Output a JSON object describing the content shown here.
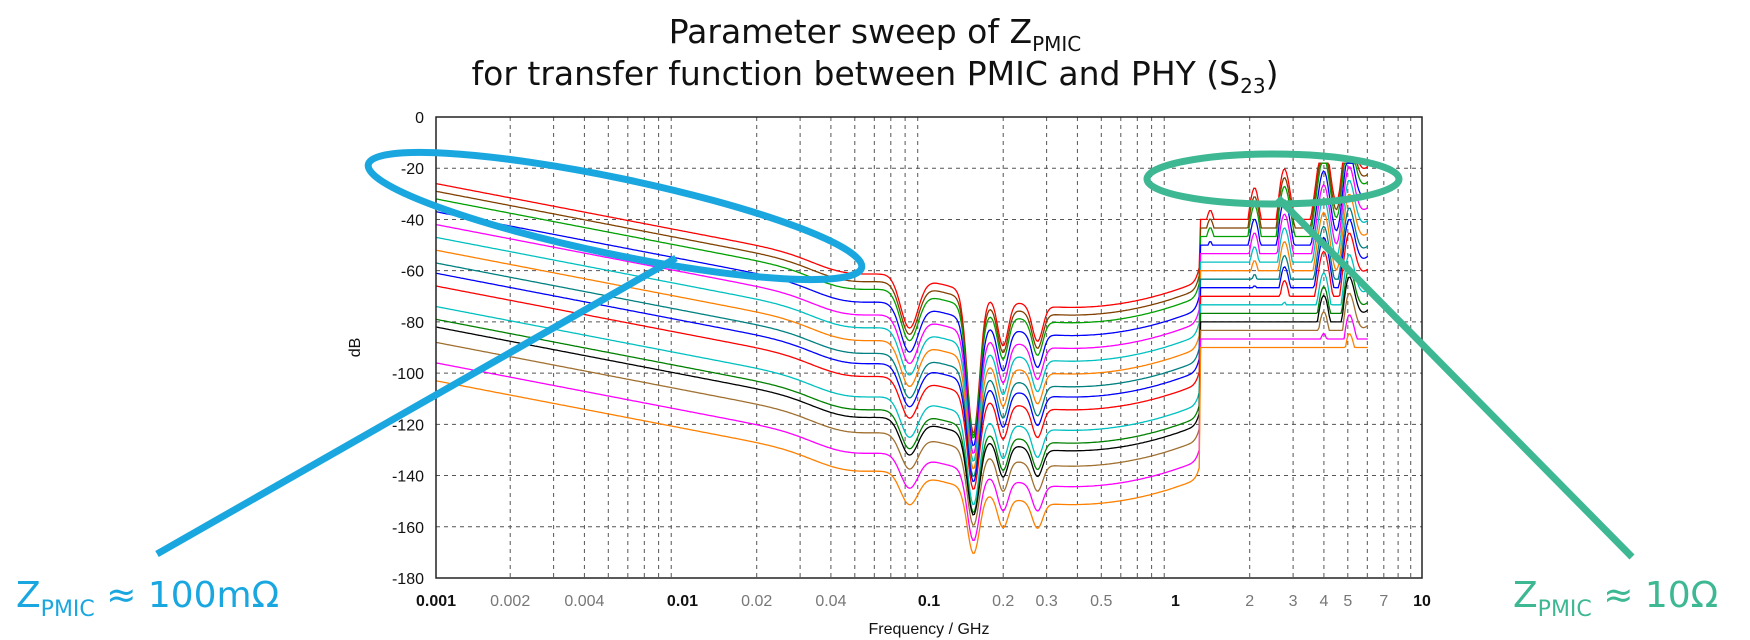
{
  "title_main": "Parameter sweep of Z",
  "title_main_sub": "PMIC",
  "title_second": "for transfer function between PMIC and PHY (S",
  "title_second_sub": "23",
  "title_second_end": ")",
  "annotations": {
    "left": {
      "symbol": "Z",
      "sub": "PMIC",
      "text": "≈ 100mΩ",
      "color": "#1aa7e0"
    },
    "right": {
      "symbol": "Z",
      "sub": "PMIC",
      "text": "≈ 10Ω",
      "color": "#3db893"
    }
  },
  "chart_data": {
    "type": "line",
    "xlabel": "Frequency / GHz",
    "ylabel": "dB",
    "xscale": "log",
    "xlim": [
      0.001,
      10
    ],
    "ylim": [
      -180,
      0
    ],
    "yticks": [
      0,
      -20,
      -40,
      -60,
      -80,
      -100,
      -120,
      -140,
      -160,
      -180
    ],
    "xticks_major": [
      "0.001",
      "0.01",
      "0.1",
      "1",
      "10"
    ],
    "xticks_minor": [
      "0.002",
      "0.004",
      "0.02",
      "0.04",
      "0.2",
      "0.3",
      "0.5",
      "2",
      "3",
      "4",
      "5",
      "7"
    ],
    "grid": true,
    "series": [
      {
        "color": "#ff0000",
        "start": -26
      },
      {
        "color": "#804000",
        "start": -29
      },
      {
        "color": "#00a000",
        "start": -32
      },
      {
        "color": "#0000ff",
        "start": -37
      },
      {
        "color": "#ff00ff",
        "start": -42
      },
      {
        "color": "#00c0c0",
        "start": -47
      },
      {
        "color": "#ff8000",
        "start": -52
      },
      {
        "color": "#008080",
        "start": -57
      },
      {
        "color": "#0000ff",
        "start": -61
      },
      {
        "color": "#ff0000",
        "start": -66
      },
      {
        "color": "#00c0c0",
        "start": -74
      },
      {
        "color": "#008000",
        "start": -79
      },
      {
        "color": "#000000",
        "start": -82
      },
      {
        "color": "#a07030",
        "start": -88
      },
      {
        "color": "#ff00ff",
        "start": -96
      },
      {
        "color": "#ff8000",
        "start": -103
      }
    ]
  }
}
